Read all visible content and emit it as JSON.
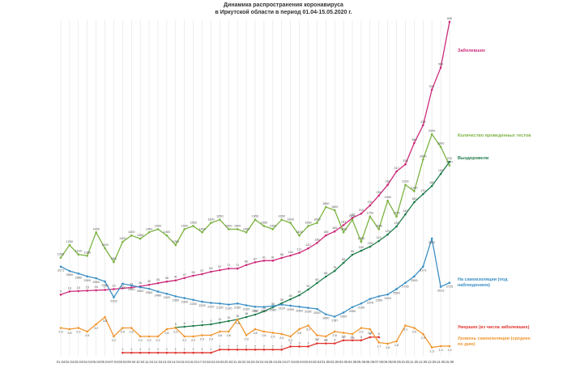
{
  "chart_data": {
    "type": "line",
    "title": "Динамика распространения коронавируса",
    "subtitle": "в Иркутской области в период 01.04-15.05.2020 г.",
    "categories": [
      "01.04",
      "02.04",
      "03.04",
      "04.04",
      "05.04",
      "06.04",
      "07.04",
      "08.04",
      "09.04",
      "10.04",
      "11.04",
      "12.04",
      "13.04",
      "14.04",
      "15.04",
      "16.04",
      "17.04",
      "18.04",
      "19.04",
      "20.04",
      "21.04",
      "22.04",
      "23.04",
      "24.04",
      "25.04",
      "26.04",
      "27.04",
      "28.04",
      "29.04",
      "30.04",
      "01.05",
      "02.05",
      "03.05",
      "04.05",
      "05.05",
      "06.05",
      "07.05",
      "08.05",
      "09.05",
      "10.05",
      "11.05",
      "12.05",
      "13.05",
      "14.05",
      "15.05"
    ],
    "grid": true,
    "series": [
      {
        "name": "Заболевших",
        "color": "#cc2a7a",
        "ylim": [
          -150,
          700
        ],
        "values": [
          5,
          13,
          14,
          15,
          16,
          17,
          19,
          21,
          23,
          26,
          30,
          34,
          38,
          41,
          47,
          53,
          57,
          63,
          67,
          71,
          71,
          80,
          87,
          91,
          91,
          98,
          104,
          111,
          122,
          136,
          155,
          165,
          181,
          199,
          210,
          231,
          256,
          283,
          317,
          335,
          389,
          434,
          524,
          580,
          696
        ]
      },
      {
        "name": "Количество проведенных тестов",
        "color": "#7cb342",
        "ylim": [
          -500,
          4800
        ],
        "values": [
          1050,
          1250,
          1100,
          1080,
          1450,
          1200,
          980,
          1300,
          1400,
          1350,
          1450,
          1500,
          1400,
          1250,
          1500,
          1550,
          1450,
          1600,
          1650,
          1500,
          1500,
          1450,
          1650,
          1550,
          1500,
          1650,
          1600,
          1400,
          1550,
          1600,
          1850,
          1800,
          1450,
          1650,
          1300,
          1700,
          1500,
          1950,
          1700,
          2200,
          2100,
          2600,
          2999,
          2800,
          2507
        ]
      },
      {
        "name": "Выздоровели",
        "color": "#1e7b4a",
        "ylim": [
          -30,
          385
        ],
        "values": [
          null,
          null,
          null,
          null,
          null,
          null,
          null,
          null,
          null,
          null,
          null,
          null,
          null,
          5,
          6,
          7,
          8,
          9,
          11,
          13,
          15,
          18,
          21,
          25,
          30,
          35,
          40,
          45,
          52,
          60,
          68,
          75,
          85,
          95,
          100,
          105,
          112,
          120,
          130,
          145,
          160,
          170,
          180,
          195,
          210
        ]
      },
      {
        "name": "На самоизоляции (под наблюдением)",
        "color": "#3b8fc4",
        "ylim": [
          700,
          10000
        ],
        "values": [
          3171,
          3050,
          2980,
          2900,
          2850,
          2760,
          2323,
          2700,
          2650,
          2600,
          2560,
          2480,
          2420,
          2350,
          2300,
          2250,
          2200,
          2167,
          2150,
          2120,
          2150,
          2100,
          2060,
          2055,
          2080,
          2120,
          2090,
          2060,
          2030,
          2000,
          1850,
          1787,
          1900,
          2050,
          2150,
          2278,
          2350,
          2400,
          2550,
          2725,
          2900,
          3171,
          3952,
          2613,
          2725
        ]
      },
      {
        "name": "Умерших (из числа заболевших)",
        "color": "#e0342f",
        "ylim": [
          0,
          108
        ],
        "values": [
          null,
          null,
          null,
          null,
          null,
          null,
          null,
          1,
          1,
          1,
          1,
          1,
          1,
          1,
          1,
          1,
          1,
          1,
          2,
          2,
          2,
          2,
          2,
          2,
          2,
          2,
          3,
          3,
          3,
          4,
          4,
          4,
          5,
          5,
          5,
          6,
          6,
          null,
          null,
          null,
          null,
          null,
          null,
          null,
          null
        ]
      },
      {
        "name": "Уровень самоизоляции (среднее по дню)",
        "color": "#f0962e",
        "ylim": [
          0.6,
          28.3
        ],
        "values": [
          2.9,
          2.8,
          2.9,
          2.6,
          3.2,
          3.8,
          2.2,
          2.9,
          2.9,
          2.2,
          2.2,
          2.2,
          2.8,
          2.9,
          2.2,
          2.2,
          2.3,
          2.3,
          2.6,
          2.6,
          3.6,
          2.3,
          2.8,
          2.6,
          2.5,
          2.4,
          2.2,
          2.8,
          3.1,
          2.3,
          2.2,
          2.6,
          2.5,
          2.4,
          2.9,
          2.8,
          1.7,
          1.6,
          1.8,
          3.1,
          2.9,
          2.4,
          1.3,
          1.4,
          1.4
        ]
      }
    ]
  }
}
